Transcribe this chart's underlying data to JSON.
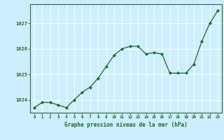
{
  "x": [
    0,
    1,
    2,
    3,
    4,
    5,
    6,
    7,
    8,
    9,
    10,
    11,
    12,
    13,
    14,
    15,
    16,
    17,
    18,
    19,
    20,
    21,
    22,
    23
  ],
  "y": [
    1023.7,
    1023.9,
    1023.9,
    1023.8,
    1023.7,
    1024.0,
    1024.3,
    1024.5,
    1024.85,
    1025.3,
    1025.75,
    1026.0,
    1026.1,
    1026.1,
    1025.8,
    1025.85,
    1025.8,
    1025.05,
    1025.05,
    1025.05,
    1025.4,
    1026.3,
    1027.0,
    1027.5
  ],
  "line_color": "#1a6b1a",
  "marker_color": "#1a6b1a",
  "bg_color": "#cceeff",
  "grid_color": "#aaddcc",
  "xlabel": "Graphe pression niveau de la mer (hPa)",
  "xlabel_color": "#1a6b1a",
  "tick_color": "#1a6b1a",
  "spine_color": "#336633",
  "ylim": [
    1023.5,
    1027.75
  ],
  "yticks": [
    1024,
    1025,
    1026,
    1027
  ],
  "xlim": [
    -0.5,
    23.5
  ],
  "xticks": [
    0,
    1,
    2,
    3,
    4,
    5,
    6,
    7,
    8,
    9,
    10,
    11,
    12,
    13,
    14,
    15,
    16,
    17,
    18,
    19,
    20,
    21,
    22,
    23
  ]
}
